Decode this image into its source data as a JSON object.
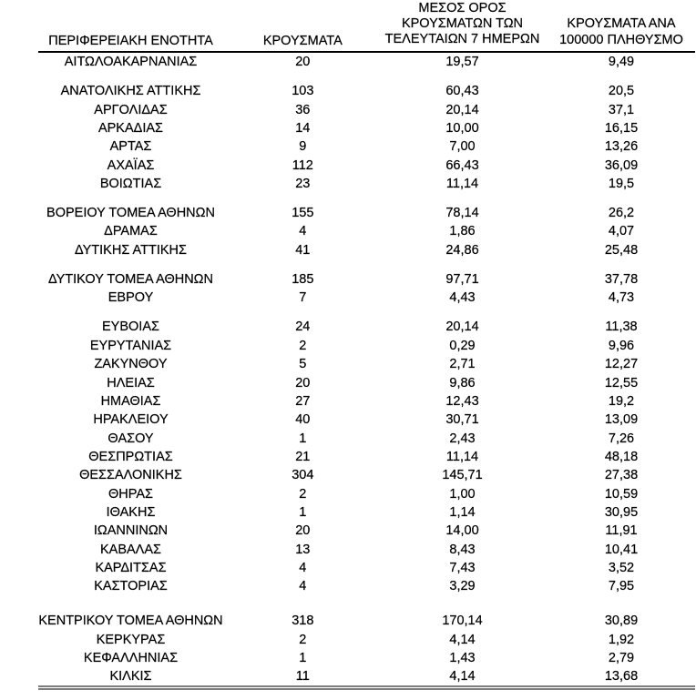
{
  "document": {
    "language": "el",
    "background": "#ffffff",
    "text_color": "#000000",
    "header_rule_color": "#000000",
    "bottom_rule_color": "#7d7d7d"
  },
  "table": {
    "header": {
      "col1_lines": [
        "ΠΕΡΙΦΕΡΕΙΑΚΗ ΕΝΟΤΗΤΑ"
      ],
      "col2_lines": [
        "ΚΡΟΥΣΜΑΤΑ"
      ],
      "col3_lines": [
        "ΜΕΣΟΣ ΟΡΟΣ",
        "ΚΡΟΥΣΜΑΤΩΝ ΤΩΝ",
        "ΤΕΛΕΥΤΑΙΩΝ 7 ΗΜΕΡΩΝ"
      ],
      "col4_lines": [
        "ΚΡΟΥΣΜΑΤΑ ΑΝΑ",
        "100000 ΠΛΗΘΥΣΜΟ"
      ]
    }
  },
  "chart_data": {
    "type": "table",
    "columns": [
      "ΠΕΡΙΦΕΡΕΙΑΚΗ ΕΝΟΤΗΤΑ",
      "ΚΡΟΥΣΜΑΤΑ",
      "ΜΕΣΟΣ ΟΡΟΣ ΚΡΟΥΣΜΑΤΩΝ ΤΩΝ ΤΕΛΕΥΤΑΙΩΝ 7 ΗΜΕΡΩΝ",
      "ΚΡΟΥΣΜΑΤΑ ΑΝΑ 100000 ΠΛΗΘΥΣΜΟ"
    ],
    "groups": [
      [
        [
          "ΑΙΤΩΛΟΑΚΑΡΝΑΝΙΑΣ",
          "20",
          "19,57",
          "9,49"
        ]
      ],
      [
        [
          "ΑΝΑΤΟΛΙΚΗΣ ΑΤΤΙΚΗΣ",
          "103",
          "60,43",
          "20,5"
        ],
        [
          "ΑΡΓΟΛΙΔΑΣ",
          "36",
          "20,14",
          "37,1"
        ],
        [
          "ΑΡΚΑΔΙΑΣ",
          "14",
          "10,00",
          "16,15"
        ],
        [
          "ΑΡΤΑΣ",
          "9",
          "7,00",
          "13,26"
        ],
        [
          "ΑΧΑΪΑΣ",
          "112",
          "66,43",
          "36,09"
        ],
        [
          "ΒΟΙΩΤΙΑΣ",
          "23",
          "11,14",
          "19,5"
        ]
      ],
      [
        [
          "ΒΟΡΕΙΟΥ ΤΟΜΕΑ ΑΘΗΝΩΝ",
          "155",
          "78,14",
          "26,2"
        ],
        [
          "ΔΡΑΜΑΣ",
          "4",
          "1,86",
          "4,07"
        ],
        [
          "ΔΥΤΙΚΗΣ ΑΤΤΙΚΗΣ",
          "41",
          "24,86",
          "25,48"
        ]
      ],
      [
        [
          "ΔΥΤΙΚΟΥ ΤΟΜΕΑ ΑΘΗΝΩΝ",
          "185",
          "97,71",
          "37,78"
        ],
        [
          "ΕΒΡΟΥ",
          "7",
          "4,43",
          "4,73"
        ]
      ],
      [
        [
          "ΕΥΒΟΙΑΣ",
          "24",
          "20,14",
          "11,38"
        ],
        [
          "ΕΥΡΥΤΑΝΙΑΣ",
          "2",
          "0,29",
          "9,96"
        ],
        [
          "ΖΑΚΥΝΘΟΥ",
          "5",
          "2,71",
          "12,27"
        ],
        [
          "ΗΛΕΙΑΣ",
          "20",
          "9,86",
          "12,55"
        ],
        [
          "ΗΜΑΘΙΑΣ",
          "27",
          "12,43",
          "19,2"
        ],
        [
          "ΗΡΑΚΛΕΙΟΥ",
          "40",
          "30,71",
          "13,09"
        ],
        [
          "ΘΑΣΟΥ",
          "1",
          "2,43",
          "7,26"
        ],
        [
          "ΘΕΣΠΡΩΤΙΑΣ",
          "21",
          "11,14",
          "48,18"
        ],
        [
          "ΘΕΣΣΑΛΟΝΙΚΗΣ",
          "304",
          "145,71",
          "27,38"
        ],
        [
          "ΘΗΡΑΣ",
          "2",
          "1,00",
          "10,59"
        ],
        [
          "ΙΘΑΚΗΣ",
          "1",
          "1,14",
          "30,95"
        ],
        [
          "ΙΩΑΝΝΙΝΩΝ",
          "20",
          "14,00",
          "11,91"
        ],
        [
          "ΚΑΒΑΛΑΣ",
          "13",
          "8,43",
          "10,41"
        ],
        [
          "ΚΑΡΔΙΤΣΑΣ",
          "4",
          "7,43",
          "3,52"
        ],
        [
          "ΚΑΣΤΟΡΙΑΣ",
          "4",
          "3,29",
          "7,95"
        ]
      ],
      [
        [
          "ΚΕΝΤΡΙΚΟΥ ΤΟΜΕΑ ΑΘΗΝΩΝ",
          "318",
          "170,14",
          "30,89"
        ],
        [
          "ΚΕΡΚΥΡΑΣ",
          "2",
          "4,14",
          "1,92"
        ],
        [
          "ΚΕΦΑΛΛΗΝΙΑΣ",
          "1",
          "1,43",
          "2,79"
        ],
        [
          "ΚΙΛΚΙΣ",
          "11",
          "4,14",
          "13,68"
        ]
      ]
    ]
  }
}
